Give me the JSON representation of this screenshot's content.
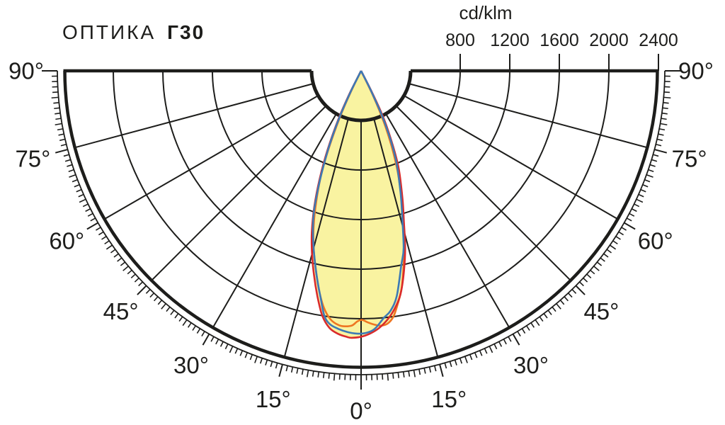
{
  "header": {
    "title_prefix": "ОПТИКА",
    "title_model": "Г30"
  },
  "chart_data": {
    "type": "polar",
    "subtype": "photometric-intensity-curve",
    "title": "ОПТИКА Г30",
    "unit_label": "cd/klm",
    "radial_axis": {
      "ticks": [
        800,
        1200,
        1600,
        2000,
        2400
      ],
      "tick_labels": [
        "800",
        "1200",
        "1600",
        "2000",
        "2400"
      ],
      "inner_arc_value": 400,
      "outer_rim_value": 2400
    },
    "angle_axis": {
      "min_deg": -90,
      "max_deg": 90,
      "grid_step_deg": 15,
      "minor_tick_step_deg": 1,
      "labels": [
        {
          "deg": 0,
          "text": "0°"
        },
        {
          "deg": 15,
          "text": "15°"
        },
        {
          "deg": 30,
          "text": "30°"
        },
        {
          "deg": 45,
          "text": "45°"
        },
        {
          "deg": 60,
          "text": "60°"
        },
        {
          "deg": 75,
          "text": "75°"
        },
        {
          "deg": 90,
          "text": "90°"
        }
      ]
    },
    "colors": {
      "ink": "#1d1d1b",
      "beam_fill": "#f9f3a1",
      "blue": "#3d7ab5",
      "red": "#da2b2b",
      "orange": "#ee7622"
    },
    "series": [
      {
        "name": "orange-curve",
        "color_key": "orange",
        "points": [
          [
            -27.5,
            0
          ],
          [
            -26,
            200
          ],
          [
            -24.5,
            420
          ],
          [
            -22.5,
            700
          ],
          [
            -21,
            900
          ],
          [
            -19,
            1110
          ],
          [
            -17,
            1310
          ],
          [
            -15,
            1480
          ],
          [
            -13,
            1630
          ],
          [
            -11,
            1790
          ],
          [
            -9,
            1930
          ],
          [
            -7,
            2020
          ],
          [
            -5,
            2060
          ],
          [
            -3.5,
            2065
          ],
          [
            -2,
            2055
          ],
          [
            -0.8,
            2020
          ],
          [
            0.3,
            2010
          ],
          [
            1.5,
            2030
          ],
          [
            3,
            2050
          ],
          [
            4.5,
            2062
          ],
          [
            6,
            2050
          ],
          [
            7.5,
            2000
          ],
          [
            9,
            1900
          ],
          [
            10.5,
            1790
          ],
          [
            12,
            1640
          ],
          [
            14,
            1440
          ],
          [
            16,
            1220
          ],
          [
            18,
            1040
          ],
          [
            20,
            860
          ],
          [
            22,
            660
          ],
          [
            24,
            450
          ],
          [
            25.8,
            220
          ],
          [
            27,
            0
          ]
        ]
      },
      {
        "name": "red-curve",
        "color_key": "red",
        "points": [
          [
            -28.3,
            0
          ],
          [
            -26.8,
            200
          ],
          [
            -25.2,
            420
          ],
          [
            -23,
            690
          ],
          [
            -21,
            930
          ],
          [
            -19,
            1160
          ],
          [
            -17,
            1360
          ],
          [
            -15,
            1530
          ],
          [
            -13,
            1690
          ],
          [
            -11,
            1850
          ],
          [
            -9,
            2000
          ],
          [
            -7,
            2090
          ],
          [
            -5,
            2130
          ],
          [
            -3,
            2150
          ],
          [
            -2,
            2155
          ],
          [
            0,
            2145
          ],
          [
            2,
            2120
          ],
          [
            4,
            2080
          ],
          [
            6,
            2020
          ],
          [
            8,
            1940
          ],
          [
            10,
            1830
          ],
          [
            12,
            1660
          ],
          [
            14,
            1470
          ],
          [
            16,
            1250
          ],
          [
            18,
            1080
          ],
          [
            21,
            850
          ],
          [
            23,
            660
          ],
          [
            25.5,
            420
          ],
          [
            27,
            180
          ],
          [
            28.5,
            0
          ]
        ]
      },
      {
        "name": "blue-curve",
        "color_key": "blue",
        "points": [
          [
            -28,
            0
          ],
          [
            -26.5,
            180
          ],
          [
            -25,
            400
          ],
          [
            -23,
            660
          ],
          [
            -21,
            900
          ],
          [
            -19.5,
            1080
          ],
          [
            -18.5,
            1200
          ],
          [
            -17,
            1330
          ],
          [
            -15,
            1480
          ],
          [
            -13.4,
            1600
          ],
          [
            -12,
            1710
          ],
          [
            -10,
            1870
          ],
          [
            -8.5,
            2000
          ],
          [
            -7,
            2060
          ],
          [
            -5,
            2090
          ],
          [
            -3,
            2110
          ],
          [
            -1,
            2120
          ],
          [
            1,
            2115
          ],
          [
            3,
            2085
          ],
          [
            5.3,
            2000
          ],
          [
            7,
            1950
          ],
          [
            9,
            1840
          ],
          [
            11.7,
            1600
          ],
          [
            13.5,
            1470
          ],
          [
            16,
            1200
          ],
          [
            18,
            1030
          ],
          [
            21,
            800
          ],
          [
            23,
            620
          ],
          [
            25,
            400
          ],
          [
            26.5,
            170
          ],
          [
            27.8,
            0
          ]
        ]
      }
    ]
  }
}
